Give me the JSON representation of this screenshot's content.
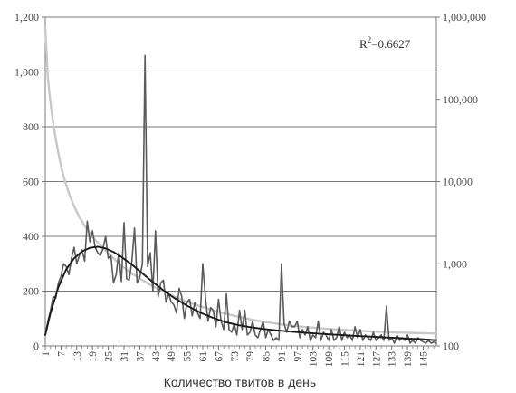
{
  "chart_data": {
    "type": "line",
    "xlabel": "Количество твитов в день",
    "x_ticks": [
      1,
      7,
      13,
      19,
      25,
      31,
      37,
      43,
      49,
      55,
      61,
      67,
      73,
      79,
      85,
      91,
      97,
      103,
      109,
      115,
      121,
      127,
      133,
      139,
      145
    ],
    "xlim": [
      1,
      150
    ],
    "left_axis": {
      "ticks": [
        0,
        200,
        400,
        600,
        800,
        1000,
        1200
      ],
      "tick_labels": [
        "0",
        "200",
        "400",
        "600",
        "800",
        "1,000",
        "1,200"
      ],
      "ylim": [
        0,
        1200
      ]
    },
    "right_axis": {
      "scale": "log",
      "ticks": [
        100,
        1000,
        10000,
        100000,
        1000000
      ],
      "tick_labels": [
        "100",
        "1,000",
        "10,000",
        "100,000",
        "1,000,000"
      ],
      "ylim": [
        100,
        1000000
      ]
    },
    "annotation": {
      "base": "R",
      "sup": "2",
      "rest": "=0.6627"
    },
    "grid": true,
    "series": [
      {
        "axis": "right",
        "style": "light-gray",
        "color": "#c8c8c8",
        "x": [
          1,
          2,
          3,
          4,
          5,
          6,
          7,
          8,
          10,
          12,
          14,
          16,
          18,
          20,
          23,
          26,
          30,
          34,
          38,
          42,
          46,
          50,
          55,
          60,
          65,
          70,
          75,
          80,
          85,
          90,
          95,
          100,
          105,
          110,
          115,
          120,
          125,
          130,
          135,
          140,
          145,
          150
        ],
        "y": [
          750000,
          180000,
          90000,
          52000,
          33000,
          22000,
          15500,
          11500,
          7200,
          5000,
          3700,
          2900,
          2350,
          1950,
          1550,
          1250,
          950,
          760,
          630,
          530,
          460,
          400,
          345,
          305,
          270,
          245,
          225,
          208,
          195,
          185,
          176,
          170,
          165,
          160,
          157,
          153,
          150,
          148,
          146,
          144,
          143,
          142
        ]
      },
      {
        "axis": "left",
        "style": "dark-gray-noisy",
        "color": "#5a5a5a",
        "x": [
          1,
          2,
          3,
          4,
          5,
          6,
          7,
          8,
          9,
          10,
          11,
          12,
          13,
          14,
          15,
          16,
          17,
          18,
          19,
          20,
          21,
          22,
          23,
          24,
          25,
          26,
          27,
          28,
          29,
          30,
          31,
          32,
          33,
          34,
          35,
          36,
          37,
          38,
          39,
          40,
          41,
          42,
          43,
          44,
          45,
          46,
          47,
          48,
          49,
          50,
          51,
          52,
          53,
          54,
          55,
          56,
          57,
          58,
          59,
          60,
          61,
          62,
          63,
          64,
          65,
          66,
          67,
          68,
          69,
          70,
          71,
          72,
          73,
          74,
          75,
          76,
          77,
          78,
          79,
          80,
          81,
          82,
          83,
          84,
          85,
          86,
          87,
          88,
          89,
          90,
          91,
          92,
          93,
          94,
          95,
          96,
          97,
          98,
          99,
          100,
          101,
          102,
          103,
          104,
          105,
          106,
          107,
          108,
          109,
          110,
          111,
          112,
          113,
          114,
          115,
          116,
          117,
          118,
          119,
          120,
          121,
          122,
          123,
          124,
          125,
          126,
          127,
          128,
          129,
          130,
          131,
          132,
          133,
          134,
          135,
          136,
          137,
          138,
          139,
          140,
          141,
          142,
          143,
          144,
          145,
          146,
          147,
          148,
          149,
          150
        ],
        "y": [
          40,
          90,
          130,
          180,
          175,
          230,
          255,
          300,
          290,
          260,
          320,
          360,
          300,
          330,
          350,
          310,
          455,
          380,
          420,
          360,
          340,
          330,
          355,
          400,
          320,
          330,
          230,
          260,
          340,
          235,
          450,
          245,
          240,
          310,
          430,
          230,
          250,
          300,
          1060,
          290,
          340,
          200,
          420,
          180,
          230,
          240,
          160,
          190,
          160,
          150,
          120,
          210,
          180,
          100,
          160,
          170,
          110,
          160,
          120,
          100,
          300,
          180,
          90,
          140,
          130,
          70,
          170,
          90,
          60,
          190,
          60,
          50,
          80,
          40,
          130,
          60,
          130,
          40,
          50,
          90,
          40,
          30,
          60,
          90,
          30,
          60,
          40,
          20,
          30,
          20,
          300,
          80,
          50,
          90,
          70,
          70,
          90,
          30,
          60,
          40,
          70,
          20,
          40,
          30,
          90,
          20,
          50,
          40,
          20,
          60,
          20,
          30,
          70,
          20,
          50,
          30,
          40,
          20,
          70,
          30,
          60,
          20,
          40,
          30,
          20,
          50,
          20,
          30,
          40,
          20,
          145,
          20,
          30,
          10,
          40,
          20,
          30,
          20,
          40,
          10,
          20,
          10,
          30,
          20,
          15,
          10,
          20,
          10,
          15,
          10
        ]
      },
      {
        "axis": "left",
        "style": "black-fit",
        "color": "#1a1a1a",
        "x": [
          1,
          3,
          6,
          9,
          12,
          15,
          18,
          21,
          24,
          27,
          30,
          34,
          38,
          42,
          46,
          50,
          55,
          60,
          65,
          70,
          75,
          80,
          85,
          90,
          95,
          100,
          105,
          110,
          115,
          120,
          125,
          130,
          135,
          140,
          145,
          150
        ],
        "y": [
          40,
          120,
          215,
          280,
          320,
          345,
          358,
          362,
          356,
          343,
          325,
          297,
          265,
          233,
          203,
          176,
          147,
          122,
          102,
          86,
          75,
          67,
          61,
          56,
          52,
          48,
          45,
          42,
          39,
          36,
          34,
          31,
          29,
          26,
          24,
          21
        ]
      }
    ]
  }
}
